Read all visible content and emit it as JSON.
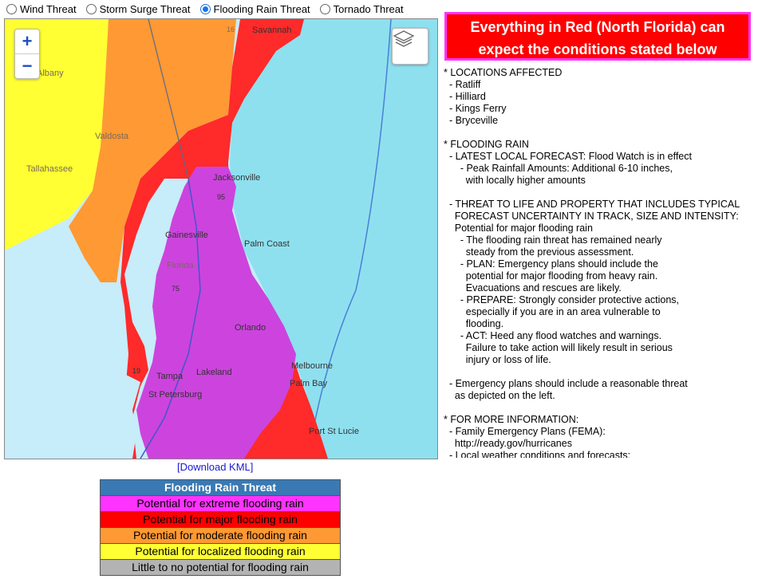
{
  "radios": [
    {
      "label": "Wind Threat",
      "checked": false
    },
    {
      "label": "Storm Surge Threat",
      "checked": false
    },
    {
      "label": "Flooding Rain Threat",
      "checked": true
    },
    {
      "label": "Tornado Threat",
      "checked": false
    }
  ],
  "map": {
    "zoom_in": "+",
    "zoom_out": "−",
    "cities": [
      "Savannah",
      "Albany",
      "Valdosta",
      "Tallahassee",
      "Jacksonville",
      "Gainesville",
      "Palm Coast",
      "Florida",
      "Orlando",
      "Tampa",
      "Lakeland",
      "St Petersburg",
      "Melbourne",
      "Palm Bay",
      "Port St Lucie"
    ],
    "shields": [
      "16",
      "95",
      "75",
      "19"
    ]
  },
  "download_kml": "[Download KML]",
  "legend": {
    "title": "Flooding Rain Threat",
    "rows": [
      {
        "label": "Potential for extreme flooding rain",
        "color": "#ff33ff"
      },
      {
        "label": "Potential for major flooding rain",
        "color": "#ff0000"
      },
      {
        "label": "Potential for moderate flooding rain",
        "color": "#ff9933"
      },
      {
        "label": "Potential for localized flooding rain",
        "color": "#ffff33"
      },
      {
        "label": "Little to no potential for flooding rain",
        "color": "#b3b3b3"
      }
    ]
  },
  "banner": {
    "line1": "Everything in Red (North Florida) can",
    "line2": "expect the conditions stated below"
  },
  "info_lines": [
    "* LOCATIONS AFFECTED",
    "  - Ratliff",
    "  - Hilliard",
    "  - Kings Ferry",
    "  - Bryceville",
    "",
    "* FLOODING RAIN",
    "  - LATEST LOCAL FORECAST: Flood Watch is in effect",
    "      - Peak Rainfall Amounts: Additional 6-10 inches,",
    "        with locally higher amounts",
    "",
    "  - THREAT TO LIFE AND PROPERTY THAT INCLUDES TYPICAL",
    "    FORECAST UNCERTAINTY IN TRACK, SIZE AND INTENSITY:",
    "    Potential for major flooding rain",
    "      - The flooding rain threat has remained nearly",
    "        steady from the previous assessment.",
    "      - PLAN: Emergency plans should include the",
    "        potential for major flooding from heavy rain.",
    "        Evacuations and rescues are likely.",
    "      - PREPARE: Strongly consider protective actions,",
    "        especially if you are in an area vulnerable to",
    "        flooding.",
    "      - ACT: Heed any flood watches and warnings.",
    "        Failure to take action will likely result in serious",
    "        injury or loss of life.",
    "",
    "  - Emergency plans should include a reasonable threat",
    "    as depicted on the left.",
    "",
    "* FOR MORE INFORMATION:",
    "  - Family Emergency Plans (FEMA):",
    "    http://ready.gov/hurricanes",
    "  - Local weather conditions and forecasts:"
  ]
}
